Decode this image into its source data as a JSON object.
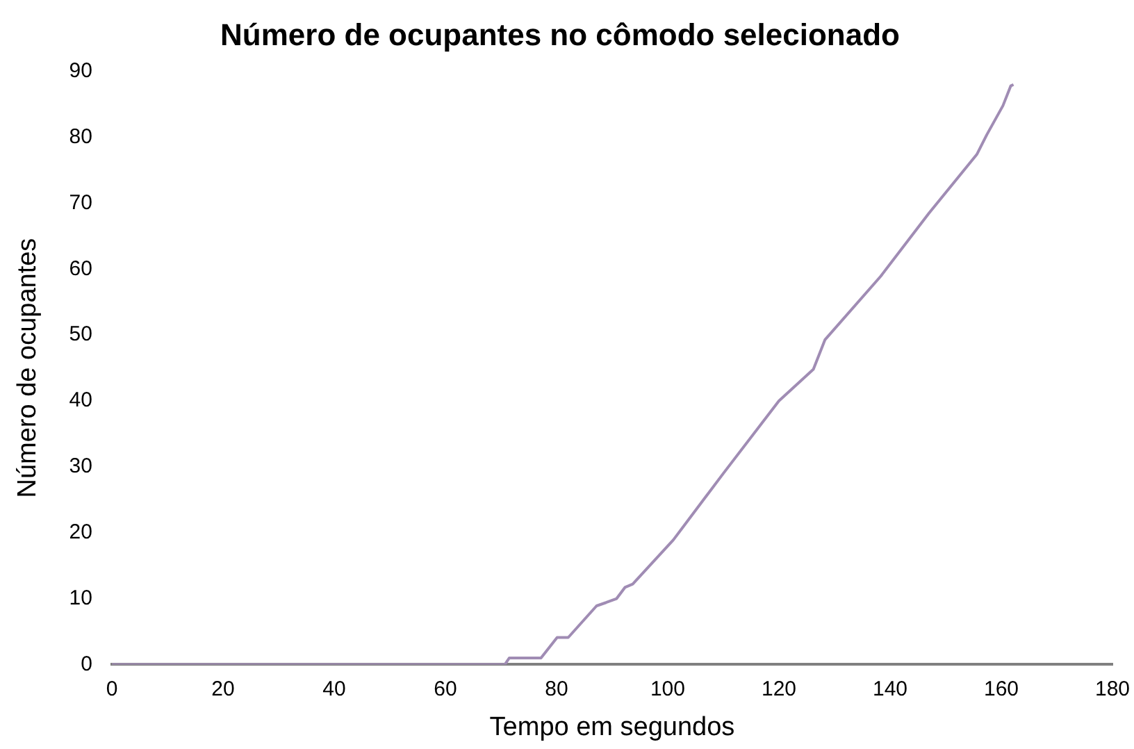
{
  "chart_data": {
    "type": "line",
    "title": "Número de ocupantes no cômodo selecionado",
    "xlabel": "Tempo em segundos",
    "ylabel": "Número de ocupantes",
    "x": [
      0,
      70.7,
      71.5,
      77.2,
      80.1,
      82.1,
      87.2,
      88.9,
      90.8,
      92.3,
      93.7,
      101,
      110,
      120,
      126.2,
      128.3,
      138.3,
      147,
      155.6,
      157.4,
      160.3,
      161.7,
      162.2
    ],
    "series": [
      {
        "color": "#a08cb4",
        "values": [
          0,
          0,
          1,
          1,
          4.1,
          4.1,
          8.9,
          9.4,
          10,
          11.7,
          12.2,
          18.9,
          29,
          40,
          44.8,
          49.3,
          58.9,
          68.5,
          77.4,
          80.4,
          84.8,
          87.8,
          88
        ]
      }
    ],
    "xlim": [
      0,
      180
    ],
    "xticks": [
      0,
      20,
      40,
      60,
      80,
      100,
      120,
      140,
      160,
      180
    ],
    "ylim": [
      0,
      90
    ],
    "yticks": [
      0,
      10,
      20,
      30,
      40,
      50,
      60,
      70,
      80,
      90
    ],
    "grid": false,
    "legend": false,
    "marker": "none",
    "line_style": "solid"
  }
}
